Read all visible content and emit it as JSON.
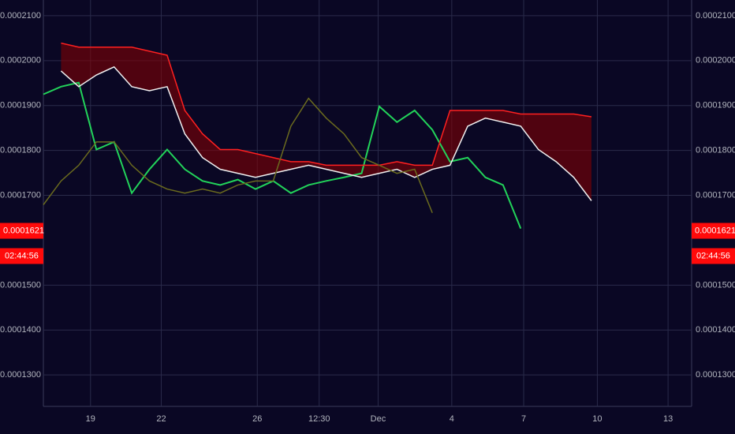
{
  "chart_data": {
    "type": "line",
    "x": [
      0,
      3,
      6,
      9,
      12,
      15,
      18,
      21,
      24,
      27,
      30,
      33,
      36,
      39,
      42,
      45,
      48,
      51,
      54,
      57,
      60,
      63,
      66,
      69,
      72,
      75,
      78,
      81,
      84,
      87,
      90,
      93,
      96,
      99,
      102,
      105
    ],
    "xlim": [
      0,
      110
    ],
    "xticks": [
      {
        "value": 8,
        "label": "19"
      },
      {
        "value": 20,
        "label": "22"
      },
      {
        "value": 36.3,
        "label": "26"
      },
      {
        "value": 46.8,
        "label": "12:30"
      },
      {
        "value": 56.8,
        "label": "Dec"
      },
      {
        "value": 69.3,
        "label": "4"
      },
      {
        "value": 81.5,
        "label": "7"
      },
      {
        "value": 94,
        "label": "10"
      },
      {
        "value": 106,
        "label": "13"
      }
    ],
    "ylim": [
      0.000123,
      0.0002135
    ],
    "yticks": [
      {
        "value": 0.00013,
        "label": "0.0001300"
      },
      {
        "value": 0.00014,
        "label": "0.0001400"
      },
      {
        "value": 0.00015,
        "label": "0.0001500"
      },
      {
        "value": 0.00017,
        "label": "0.0001700"
      },
      {
        "value": 0.00018,
        "label": "0.0001800"
      },
      {
        "value": 0.00019,
        "label": "0.0001900"
      },
      {
        "value": 0.0002,
        "label": "0.0002000"
      },
      {
        "value": 0.00021,
        "label": "0.0002100"
      }
    ],
    "grid": true,
    "series": [
      {
        "color": "#22d35a",
        "values": [
          0.0001925,
          0.0001942,
          0.0001951,
          0.0001802,
          0.0001819,
          0.0001705,
          0.0001758,
          0.0001802,
          0.0001758,
          0.0001732,
          0.0001723,
          0.0001735,
          0.0001714,
          0.0001732,
          0.0001705,
          0.0001723,
          0.0001732,
          0.000174,
          0.0001749,
          0.0001898,
          0.0001863,
          0.0001889,
          0.0001846,
          0.0001775,
          0.0001784,
          0.000174,
          0.0001723,
          0.0001626,
          null,
          null,
          null,
          null,
          null,
          null,
          null,
          null
        ]
      },
      {
        "color": "#ff2020",
        "values": [
          null,
          0.0002039,
          0.000203,
          0.000203,
          0.000203,
          0.000203,
          0.0002021,
          0.0002012,
          0.0001889,
          0.0001837,
          0.0001802,
          0.0001802,
          0.0001793,
          0.0001784,
          0.0001775,
          0.0001775,
          0.0001767,
          0.0001767,
          0.0001767,
          0.0001767,
          0.0001775,
          0.0001767,
          0.0001767,
          0.0001889,
          0.0001889,
          0.0001889,
          0.0001889,
          0.0001881,
          0.0001881,
          0.0001881,
          0.0001881,
          0.0001875,
          null,
          null,
          null,
          null
        ]
      },
      {
        "color": "#f0f0f0",
        "values": [
          null,
          0.0001977,
          0.0001942,
          0.0001968,
          0.0001986,
          0.0001942,
          0.0001933,
          0.0001942,
          0.0001837,
          0.0001784,
          0.0001758,
          0.0001749,
          0.000174,
          0.0001749,
          0.0001758,
          0.0001767,
          0.0001758,
          0.0001749,
          0.000174,
          0.0001749,
          0.0001758,
          0.000174,
          0.0001758,
          0.0001767,
          0.0001854,
          0.0001872,
          0.0001863,
          0.0001854,
          0.0001802,
          0.0001775,
          0.000174,
          0.0001688,
          null,
          null,
          null,
          null
        ]
      },
      {
        "color": "#6b6b1e",
        "values": [
          0.0001679,
          0.0001732,
          0.0001767,
          0.0001819,
          0.0001819,
          0.0001767,
          0.0001732,
          0.0001714,
          0.0001705,
          0.0001714,
          0.0001705,
          0.0001723,
          0.0001732,
          0.0001732,
          0.0001854,
          0.0001916,
          0.0001872,
          0.0001837,
          0.0001784,
          0.0001767,
          0.0001749,
          0.0001758,
          0.0001661,
          null,
          null,
          null,
          null,
          null,
          null,
          null,
          null,
          null,
          null,
          null,
          null,
          null
        ]
      }
    ],
    "cloud_color": "#8b0000",
    "last_price": {
      "value": 0.0001621,
      "label": "0.0001621"
    },
    "countdown": "02:44:56"
  }
}
